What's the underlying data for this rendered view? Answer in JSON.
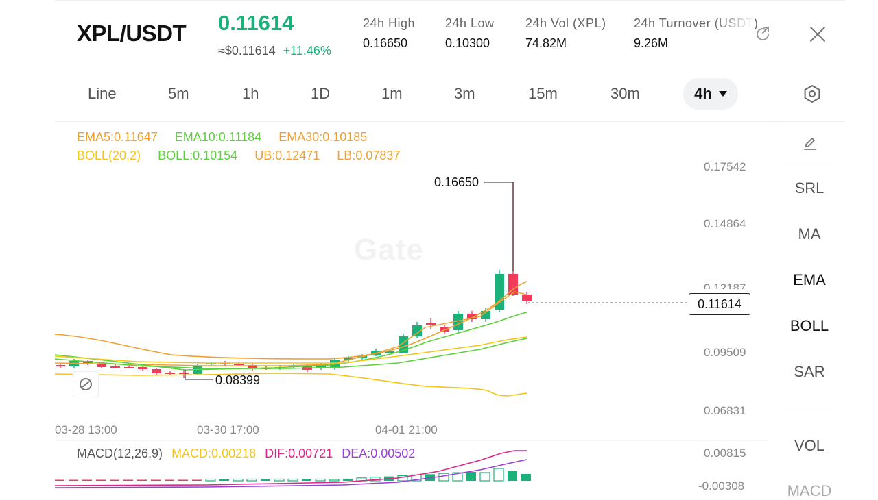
{
  "header": {
    "pair": "XPL/USDT",
    "last_price": "0.11614",
    "usd_price": "≈$0.11614",
    "change": "+11.46%",
    "stats": [
      {
        "label": "24h  High",
        "value": "0.16650"
      },
      {
        "label": "24h  Low",
        "value": "0.10300"
      },
      {
        "label": "24h  Vol (XPL)",
        "value": "74.82M"
      },
      {
        "label": "24h  Turnover (USDT)",
        "value": "9.26M"
      }
    ],
    "share_icon": "share-icon",
    "close_icon": "close-icon"
  },
  "timeframes": {
    "items": [
      "Line",
      "5m",
      "1h",
      "1D",
      "1m",
      "3m",
      "15m",
      "30m"
    ],
    "active": "4h",
    "settings_icon": "settings-hexagon-icon"
  },
  "indicators": {
    "ema5": "EMA5:0.11647",
    "ema10": "EMA10:0.11184",
    "ema30": "EMA30:0.10185",
    "boll": "BOLL(20,2)",
    "boll_mid": "BOLL:0.10154",
    "ub": "UB:0.12471",
    "lb": "LB:0.07837"
  },
  "chart": {
    "watermark": "Gate",
    "max_label": "0.16650",
    "min_label": "0.08399",
    "current_price_label": "0.11614",
    "y_ticks": [
      "0.17542",
      "0.14864",
      "0.12187",
      "0.09509",
      "0.06831"
    ],
    "x_ticks": [
      "03-28 13:00",
      "03-30 17:00",
      "04-01 21:00"
    ],
    "colors": {
      "up": "#1bb27a",
      "down": "#f23a5a",
      "ema5": "#f0a030",
      "ema10": "#5cd13a",
      "ema30": "#f0a030",
      "boll": "#f5c518"
    }
  },
  "macd": {
    "label": "MACD(12,26,9)",
    "macd": "MACD:0.00218",
    "dif": "DIF:0.00721",
    "dea": "DEA:0.00502",
    "y_ticks": [
      "0.00815",
      "-0.00308"
    ]
  },
  "sidebar": {
    "draw_icon": "pencil-icon",
    "items": [
      "SRL",
      "MA",
      "EMA",
      "BOLL",
      "SAR"
    ],
    "bottom_items": [
      "VOL",
      "MACD"
    ]
  }
}
